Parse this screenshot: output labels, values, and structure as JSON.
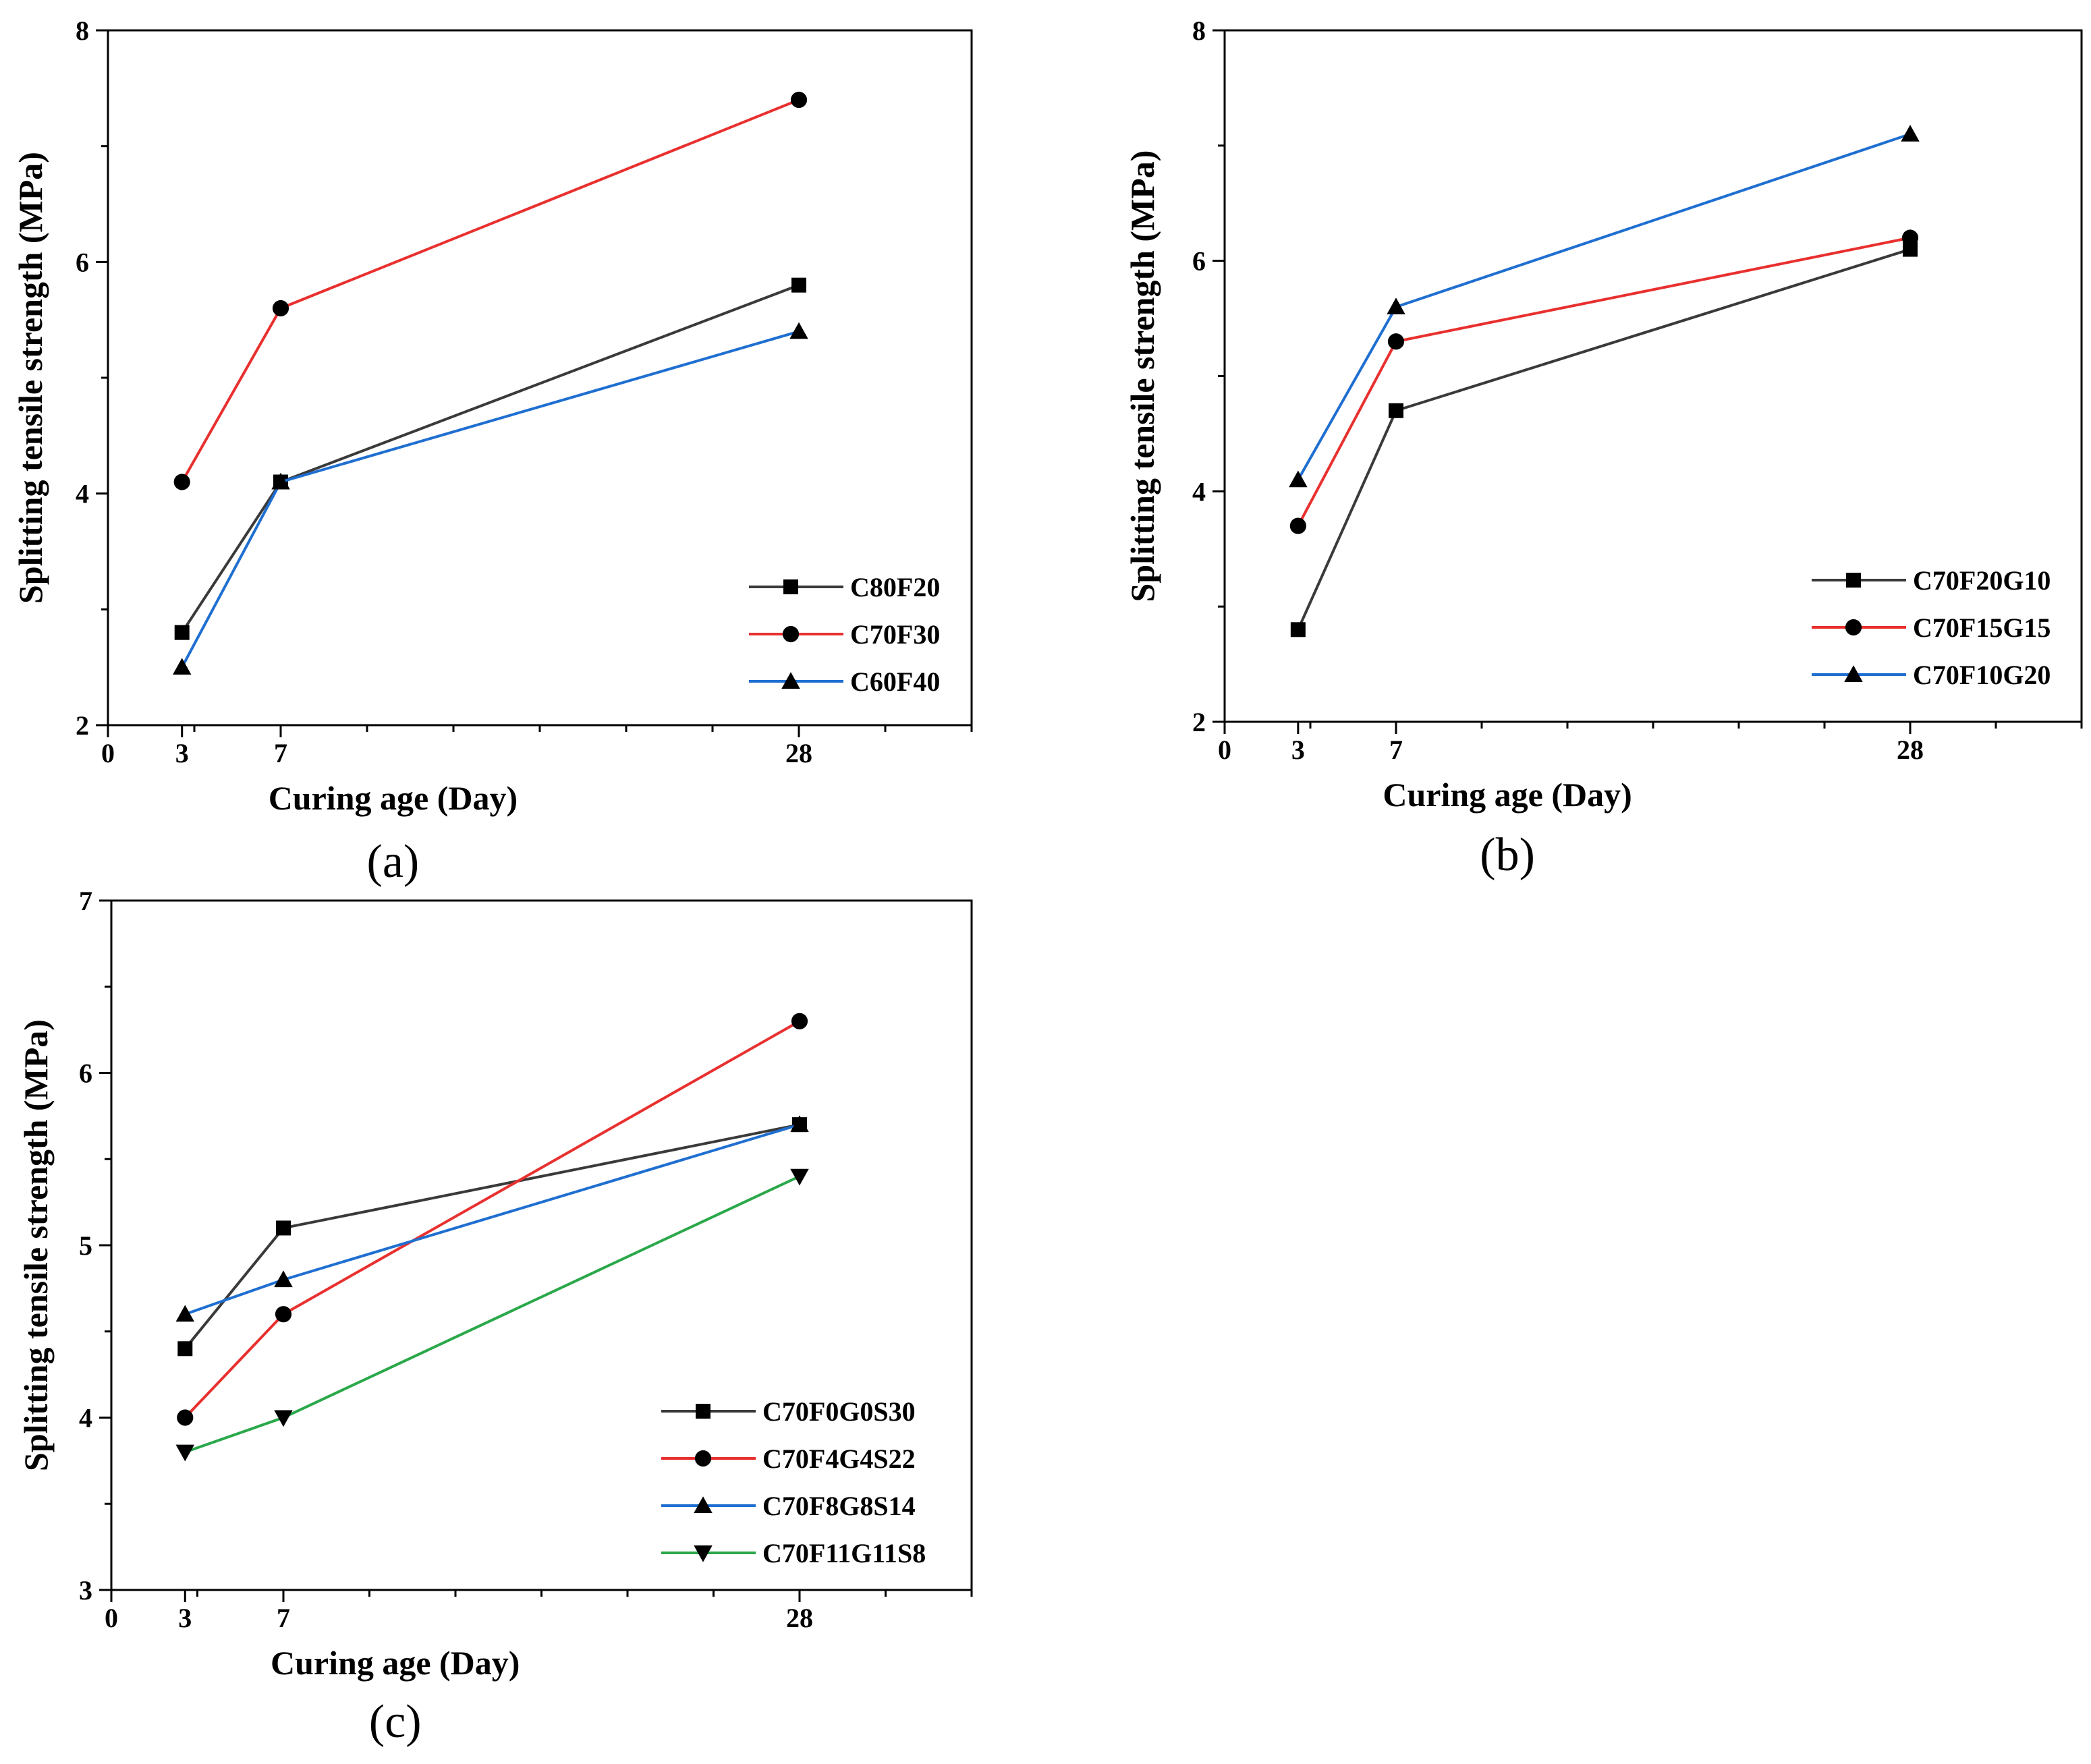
{
  "chart_data": [
    {
      "type": "line",
      "panel_label": "(a)",
      "xlabel": "Curing age (Day)",
      "ylabel": "Splitting tensile strength (MPa)",
      "xlim": [
        0,
        35
      ],
      "ylim": [
        2,
        8
      ],
      "xticks": [
        0,
        3,
        7,
        28
      ],
      "yticks": [
        2,
        4,
        6,
        8
      ],
      "legend_position": "bottom-right",
      "series": [
        {
          "name": "C80F20",
          "color": "#3a3a3a",
          "marker": "square",
          "x": [
            3,
            7,
            28
          ],
          "y": [
            2.8,
            4.1,
            5.8
          ]
        },
        {
          "name": "C70F30",
          "color": "#e8302f",
          "marker": "circle",
          "x": [
            3,
            7,
            28
          ],
          "y": [
            4.1,
            5.6,
            7.4
          ]
        },
        {
          "name": "C60F40",
          "color": "#1f6fd1",
          "marker": "triangle-up",
          "x": [
            3,
            7,
            28
          ],
          "y": [
            2.5,
            4.1,
            5.4
          ]
        }
      ]
    },
    {
      "type": "line",
      "panel_label": "(b)",
      "xlabel": "Curing age (Day)",
      "ylabel": "Splitting tensile strength (MPa)",
      "xlim": [
        0,
        35
      ],
      "ylim": [
        2,
        8
      ],
      "xticks": [
        0,
        3,
        7,
        28
      ],
      "yticks": [
        2,
        4,
        6,
        8
      ],
      "legend_position": "bottom-right",
      "series": [
        {
          "name": "C70F20G10",
          "color": "#3a3a3a",
          "marker": "square",
          "x": [
            3,
            7,
            28
          ],
          "y": [
            2.8,
            4.7,
            6.1
          ]
        },
        {
          "name": "C70F15G15",
          "color": "#e8302f",
          "marker": "circle",
          "x": [
            3,
            7,
            28
          ],
          "y": [
            3.7,
            5.3,
            6.2
          ]
        },
        {
          "name": "C70F10G20",
          "color": "#1f6fd1",
          "marker": "triangle-up",
          "x": [
            3,
            7,
            28
          ],
          "y": [
            4.1,
            5.6,
            7.1
          ]
        }
      ]
    },
    {
      "type": "line",
      "panel_label": "(c)",
      "xlabel": "Curing age (Day)",
      "ylabel": "Splitting tensile strength (MPa)",
      "xlim": [
        0,
        35
      ],
      "ylim": [
        3,
        7
      ],
      "xticks": [
        0,
        3,
        7,
        28
      ],
      "yticks": [
        3,
        4,
        5,
        6,
        7
      ],
      "legend_position": "bottom-right",
      "series": [
        {
          "name": "C70F0G0S30",
          "color": "#3a3a3a",
          "marker": "square",
          "x": [
            3,
            7,
            28
          ],
          "y": [
            4.4,
            5.1,
            5.7
          ]
        },
        {
          "name": "C70F4G4S22",
          "color": "#e8302f",
          "marker": "circle",
          "x": [
            3,
            7,
            28
          ],
          "y": [
            4.0,
            4.6,
            6.3
          ]
        },
        {
          "name": "C70F8G8S14",
          "color": "#1f6fd1",
          "marker": "triangle-up",
          "x": [
            3,
            7,
            28
          ],
          "y": [
            4.6,
            4.8,
            5.7
          ]
        },
        {
          "name": "C70F11G11S8",
          "color": "#2aa84a",
          "marker": "triangle-down",
          "x": [
            3,
            7,
            28
          ],
          "y": [
            3.8,
            4.0,
            5.4
          ]
        }
      ]
    }
  ]
}
